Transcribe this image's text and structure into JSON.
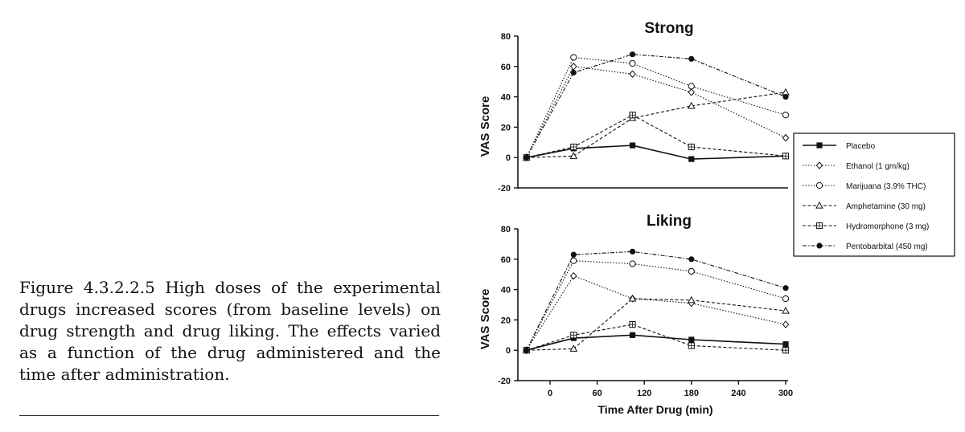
{
  "caption": "Figure 4.3.2.2.5 High doses of the experimental drugs increased scores (from baseline levels) on drug strength and drug liking. The effects varied as a function of the drug administered and the time after administration.",
  "chart_data": [
    {
      "type": "line",
      "title": "Strong",
      "ylabel": "VAS Score",
      "xlabel": "",
      "ylim": [
        -20,
        80
      ],
      "yticks": [
        -20,
        0,
        20,
        40,
        60,
        80
      ],
      "xlim": [
        -35,
        300
      ],
      "series": [
        {
          "name": "Placebo",
          "x": [
            -30,
            30,
            105,
            180,
            300
          ],
          "values": [
            0,
            6,
            8,
            -1,
            1
          ]
        },
        {
          "name": "Ethanol (1 gm/kg)",
          "x": [
            -30,
            30,
            105,
            180,
            300
          ],
          "values": [
            0,
            60,
            55,
            43,
            13
          ]
        },
        {
          "name": "Marijuana (3.9% THC)",
          "x": [
            -30,
            30,
            105,
            180,
            300
          ],
          "values": [
            0,
            66,
            62,
            47,
            28
          ]
        },
        {
          "name": "Amphetamine (30 mg)",
          "x": [
            -30,
            30,
            105,
            180,
            300
          ],
          "values": [
            0,
            1,
            26,
            34,
            43
          ]
        },
        {
          "name": "Hydromorphone (3 mg)",
          "x": [
            -30,
            30,
            105,
            180,
            300
          ],
          "values": [
            0,
            7,
            28,
            7,
            1
          ]
        },
        {
          "name": "Pentobarbital (450 mg)",
          "x": [
            -30,
            30,
            105,
            180,
            300
          ],
          "values": [
            0,
            56,
            68,
            65,
            40
          ]
        }
      ]
    },
    {
      "type": "line",
      "title": "Liking",
      "ylabel": "VAS Score",
      "xlabel": "Time After Drug (min)",
      "ylim": [
        -20,
        80
      ],
      "yticks": [
        -20,
        0,
        20,
        40,
        60,
        80
      ],
      "xlim": [
        -35,
        300
      ],
      "xticks": [
        0,
        60,
        120,
        180,
        240,
        300
      ],
      "series": [
        {
          "name": "Placebo",
          "x": [
            -30,
            30,
            105,
            180,
            300
          ],
          "values": [
            0,
            8,
            10,
            7,
            4
          ]
        },
        {
          "name": "Ethanol (1 gm/kg)",
          "x": [
            -30,
            30,
            105,
            180,
            300
          ],
          "values": [
            0,
            49,
            34,
            31,
            17
          ]
        },
        {
          "name": "Marijuana (3.9% THC)",
          "x": [
            -30,
            30,
            105,
            180,
            300
          ],
          "values": [
            0,
            59,
            57,
            52,
            34
          ]
        },
        {
          "name": "Amphetamine (30 mg)",
          "x": [
            -30,
            30,
            105,
            180,
            300
          ],
          "values": [
            0,
            1,
            34,
            33,
            26
          ]
        },
        {
          "name": "Hydromorphone (3 mg)",
          "x": [
            -30,
            30,
            105,
            180,
            300
          ],
          "values": [
            0,
            10,
            17,
            3,
            0
          ]
        },
        {
          "name": "Pentobarbital (450 mg)",
          "x": [
            -30,
            30,
            105,
            180,
            300
          ],
          "values": [
            0,
            63,
            65,
            60,
            41
          ]
        }
      ]
    }
  ],
  "legend": {
    "placement": "right",
    "items": [
      {
        "label": "Placebo",
        "marker": "filled-square",
        "dash": "solid"
      },
      {
        "label": "Ethanol (1 gm/kg)",
        "marker": "open-diamond",
        "dash": "dotted"
      },
      {
        "label": "Marijuana (3.9% THC)",
        "marker": "open-circle",
        "dash": "dotted"
      },
      {
        "label": "Amphetamine (30 mg)",
        "marker": "open-triangle",
        "dash": "dashed"
      },
      {
        "label": "Hydromorphone (3 mg)",
        "marker": "crossed-square",
        "dash": "dashed"
      },
      {
        "label": "Pentobarbital (450 mg)",
        "marker": "filled-circle",
        "dash": "dash-dot"
      }
    ]
  }
}
